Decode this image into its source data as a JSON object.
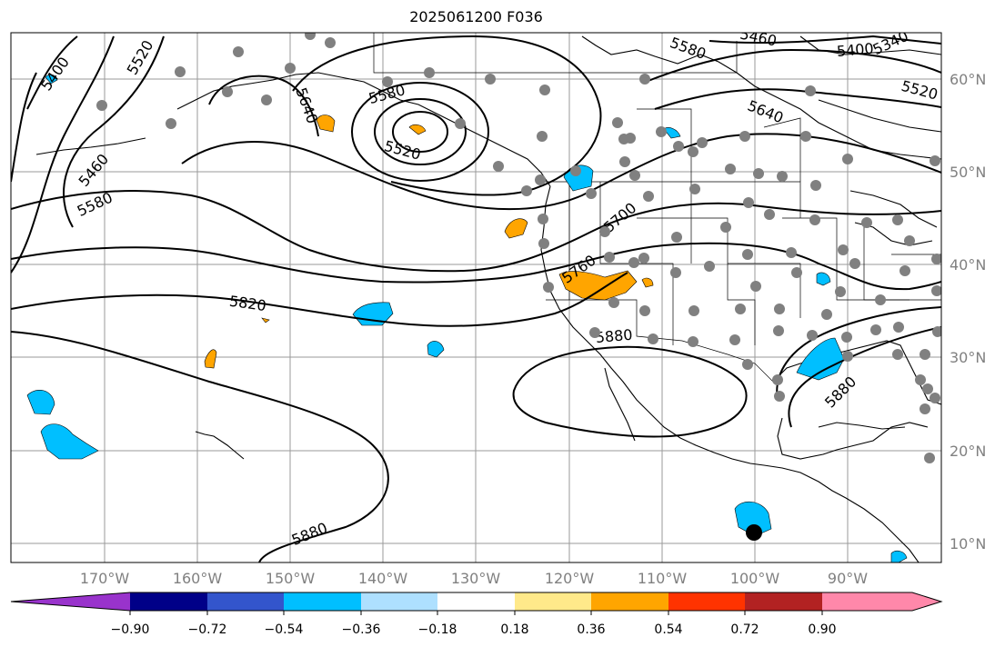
{
  "title": "2025061200 F036",
  "lat_labels": [
    "60°N",
    "50°N",
    "40°N",
    "30°N",
    "20°N",
    "10°N"
  ],
  "lon_labels": [
    "170°W",
    "160°W",
    "150°W",
    "140°W",
    "130°W",
    "120°W",
    "110°W",
    "100°W",
    "90°W"
  ],
  "contour_labels": [
    "5400",
    "5520",
    "5460",
    "5580",
    "5640",
    "5580",
    "5520",
    "5700",
    "5760",
    "5820",
    "5880",
    "5880",
    "5880",
    "5460",
    "5400",
    "5520",
    "5580",
    "5640",
    "5340"
  ],
  "colorbar": {
    "tick_labels": [
      "−0.90",
      "−0.72",
      "−0.54",
      "−0.36",
      "−0.18",
      "0.18",
      "0.36",
      "0.54",
      "0.72",
      "0.90"
    ],
    "colors": [
      "#9933cc",
      "#000088",
      "#3355cc",
      "#00bfff",
      "#aee0ff",
      "#ffffff",
      "#ffe98a",
      "#ffa500",
      "#ff3300",
      "#b22222",
      "#ff88aa"
    ]
  },
  "shading_colors": {
    "negative_fill": "#00bfff",
    "positive_fill": "#ffa500",
    "station_marker": "#808080",
    "highlight_marker": "#000000"
  }
}
